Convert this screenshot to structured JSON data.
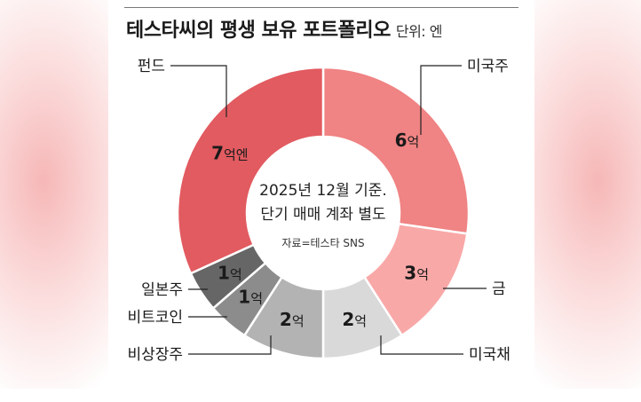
{
  "header": {
    "title": "테스타씨의 평생 보유 포트폴리오",
    "unit": "단위: 엔"
  },
  "center": {
    "line1": "2025년 12월 기준.",
    "line2": "단기 매매 계좌 별도",
    "source": "자료=테스타 SNS"
  },
  "chart_data": {
    "type": "pie",
    "donut": true,
    "unit": "억",
    "slices": [
      {
        "label": "미국주",
        "value": 6,
        "value_label": "6억",
        "color": "#f08383"
      },
      {
        "label": "금",
        "value": 3,
        "value_label": "3억",
        "color": "#f9a8a8"
      },
      {
        "label": "미국채",
        "value": 2,
        "value_label": "2억",
        "color": "#d9d9d9"
      },
      {
        "label": "비상장주",
        "value": 2,
        "value_label": "2억",
        "color": "#b3b3b3"
      },
      {
        "label": "비트코인",
        "value": 1,
        "value_label": "1억",
        "color": "#8c8c8c"
      },
      {
        "label": "일본주",
        "value": 1,
        "value_label": "1억",
        "color": "#666666"
      },
      {
        "label": "펀드",
        "value": 7,
        "value_label": "7억엔",
        "color": "#e15b60"
      }
    ]
  }
}
